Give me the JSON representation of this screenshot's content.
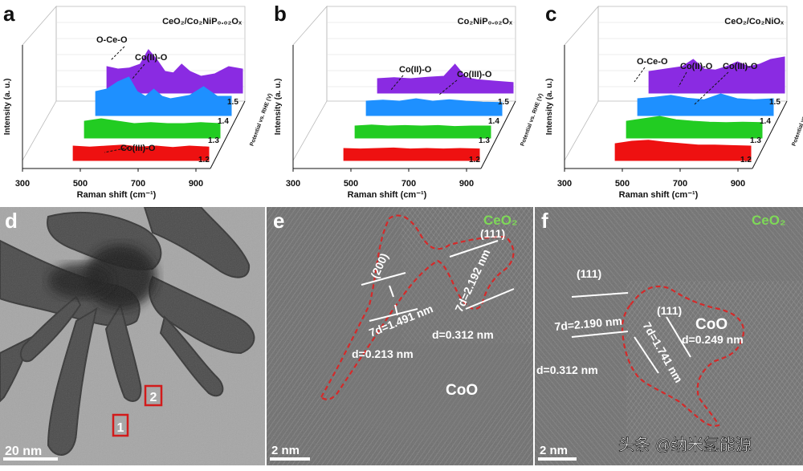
{
  "panels": {
    "a": {
      "letter": "a",
      "label_html": "CeO₂/Co₂NiP₀.₀₂Oₓ",
      "annotations": [
        "O-Ce-O",
        "Co(II)-O",
        "Co(III)-O"
      ],
      "sup": [
        "II",
        "III"
      ]
    },
    "b": {
      "letter": "b",
      "label_html": "Co₂NiP₀.₀₂Oₓ",
      "annotations": [
        "Co(II)-O",
        "Co(III)-O"
      ],
      "sup": [
        "II",
        "III"
      ]
    },
    "c": {
      "letter": "c",
      "label_html": "CeO₂/Co₂NiOₓ",
      "annotations": [
        "O-Ce-O",
        "Co(II)-O",
        "Co(III)-O"
      ],
      "sup": [
        "II",
        "III"
      ]
    },
    "d": {
      "letter": "d",
      "scalebar": "20 nm",
      "markers": [
        "1",
        "2"
      ]
    },
    "e": {
      "letter": "e",
      "phase_top": "CeO₂",
      "phase_bottom": "CoO",
      "planes": [
        "(200)",
        "(111)"
      ],
      "spacings": [
        "7d=1.491 nm",
        "7d=2.192 nm",
        "d=0.312 nm",
        "d=0.213 nm"
      ],
      "scalebar": "2 nm"
    },
    "f": {
      "letter": "f",
      "phase_top": "CeO₂",
      "phase_right": "CoO",
      "planes": [
        "(111)",
        "(111)"
      ],
      "spacings": [
        "7d=2.190 nm",
        "7d=1.741 nm",
        "d=0.249 nm",
        "d=0.312 nm"
      ],
      "scalebar": "2 nm"
    }
  },
  "axes": {
    "xlabel": "Raman shift (cm⁻¹)",
    "ylabel": "Intensity (a. u.)",
    "zlabel": "Potential vs. RHE (V)",
    "xticks": [
      "300",
      "500",
      "700",
      "900"
    ],
    "zticks": [
      "1.5",
      "1.4",
      "1.3",
      "1.2"
    ]
  },
  "series_colors": {
    "1.5": "#8a2be2",
    "1.4": "#1e90ff",
    "1.3": "#22cc22",
    "1.2": "#ee1111"
  },
  "watermark": "头条 @纳米氢能源",
  "chart_data": [
    {
      "type": "area",
      "panel": "a",
      "x_range": [
        300,
        950
      ],
      "xlabel": "Raman shift (cm⁻¹)",
      "ylabel": "Intensity (a. u.)",
      "series": [
        {
          "name": "1.5",
          "x": [
            460,
            500,
            540,
            580,
            610,
            640,
            670,
            700,
            730,
            760,
            800,
            850,
            900,
            950
          ],
          "values": [
            0.55,
            0.5,
            0.52,
            0.6,
            0.9,
            0.7,
            0.45,
            0.42,
            0.6,
            0.45,
            0.35,
            0.4,
            0.55,
            0.5
          ]
        },
        {
          "name": "1.4",
          "x": [
            460,
            500,
            540,
            580,
            610,
            640,
            670,
            700,
            730,
            760,
            800,
            850,
            900,
            950
          ],
          "values": [
            0.5,
            0.55,
            0.7,
            0.8,
            0.5,
            0.4,
            0.55,
            0.4,
            0.35,
            0.38,
            0.42,
            0.6,
            0.4,
            0.4
          ]
        },
        {
          "name": "1.3",
          "x": [
            460,
            520,
            580,
            640,
            700,
            760,
            820,
            880,
            950
          ],
          "values": [
            0.35,
            0.4,
            0.35,
            0.3,
            0.32,
            0.3,
            0.3,
            0.32,
            0.3
          ]
        },
        {
          "name": "1.2",
          "x": [
            460,
            520,
            580,
            640,
            700,
            760,
            820,
            880,
            950
          ],
          "values": [
            0.3,
            0.28,
            0.3,
            0.32,
            0.28,
            0.3,
            0.27,
            0.3,
            0.28
          ]
        }
      ]
    },
    {
      "type": "area",
      "panel": "b",
      "x_range": [
        300,
        950
      ],
      "xlabel": "Raman shift (cm⁻¹)",
      "ylabel": "Intensity (a. u.)",
      "series": [
        {
          "name": "1.5",
          "x": [
            460,
            520,
            580,
            640,
            700,
            740,
            780,
            820,
            880,
            950
          ],
          "values": [
            0.3,
            0.32,
            0.3,
            0.33,
            0.35,
            0.6,
            0.32,
            0.28,
            0.25,
            0.22
          ]
        },
        {
          "name": "1.4",
          "x": [
            460,
            520,
            580,
            640,
            700,
            760,
            820,
            880,
            950
          ],
          "values": [
            0.3,
            0.32,
            0.3,
            0.35,
            0.3,
            0.33,
            0.3,
            0.28,
            0.27
          ]
        },
        {
          "name": "1.3",
          "x": [
            460,
            520,
            580,
            640,
            700,
            760,
            820,
            880,
            950
          ],
          "values": [
            0.25,
            0.27,
            0.25,
            0.26,
            0.25,
            0.26,
            0.24,
            0.25,
            0.25
          ]
        },
        {
          "name": "1.2",
          "x": [
            460,
            520,
            580,
            640,
            700,
            760,
            820,
            880,
            950
          ],
          "values": [
            0.25,
            0.24,
            0.25,
            0.26,
            0.24,
            0.25,
            0.24,
            0.25,
            0.24
          ]
        }
      ]
    },
    {
      "type": "area",
      "panel": "c",
      "x_range": [
        300,
        950
      ],
      "xlabel": "Raman shift (cm⁻¹)",
      "ylabel": "Intensity (a. u.)",
      "series": [
        {
          "name": "1.5",
          "x": [
            460,
            520,
            580,
            620,
            660,
            700,
            740,
            780,
            820,
            860,
            900,
            950
          ],
          "values": [
            0.45,
            0.5,
            0.55,
            0.7,
            0.5,
            0.48,
            0.55,
            0.65,
            0.55,
            0.6,
            0.7,
            0.75
          ]
        },
        {
          "name": "1.4",
          "x": [
            460,
            520,
            580,
            640,
            700,
            760,
            820,
            880,
            950
          ],
          "values": [
            0.35,
            0.38,
            0.42,
            0.36,
            0.33,
            0.45,
            0.35,
            0.33,
            0.35
          ]
        },
        {
          "name": "1.3",
          "x": [
            460,
            520,
            580,
            640,
            700,
            760,
            820,
            880,
            950
          ],
          "values": [
            0.35,
            0.4,
            0.45,
            0.38,
            0.35,
            0.33,
            0.32,
            0.33,
            0.32
          ]
        },
        {
          "name": "1.2",
          "x": [
            460,
            520,
            580,
            640,
            700,
            760,
            820,
            880,
            950
          ],
          "values": [
            0.35,
            0.4,
            0.42,
            0.38,
            0.35,
            0.32,
            0.32,
            0.31,
            0.3
          ]
        }
      ]
    }
  ]
}
